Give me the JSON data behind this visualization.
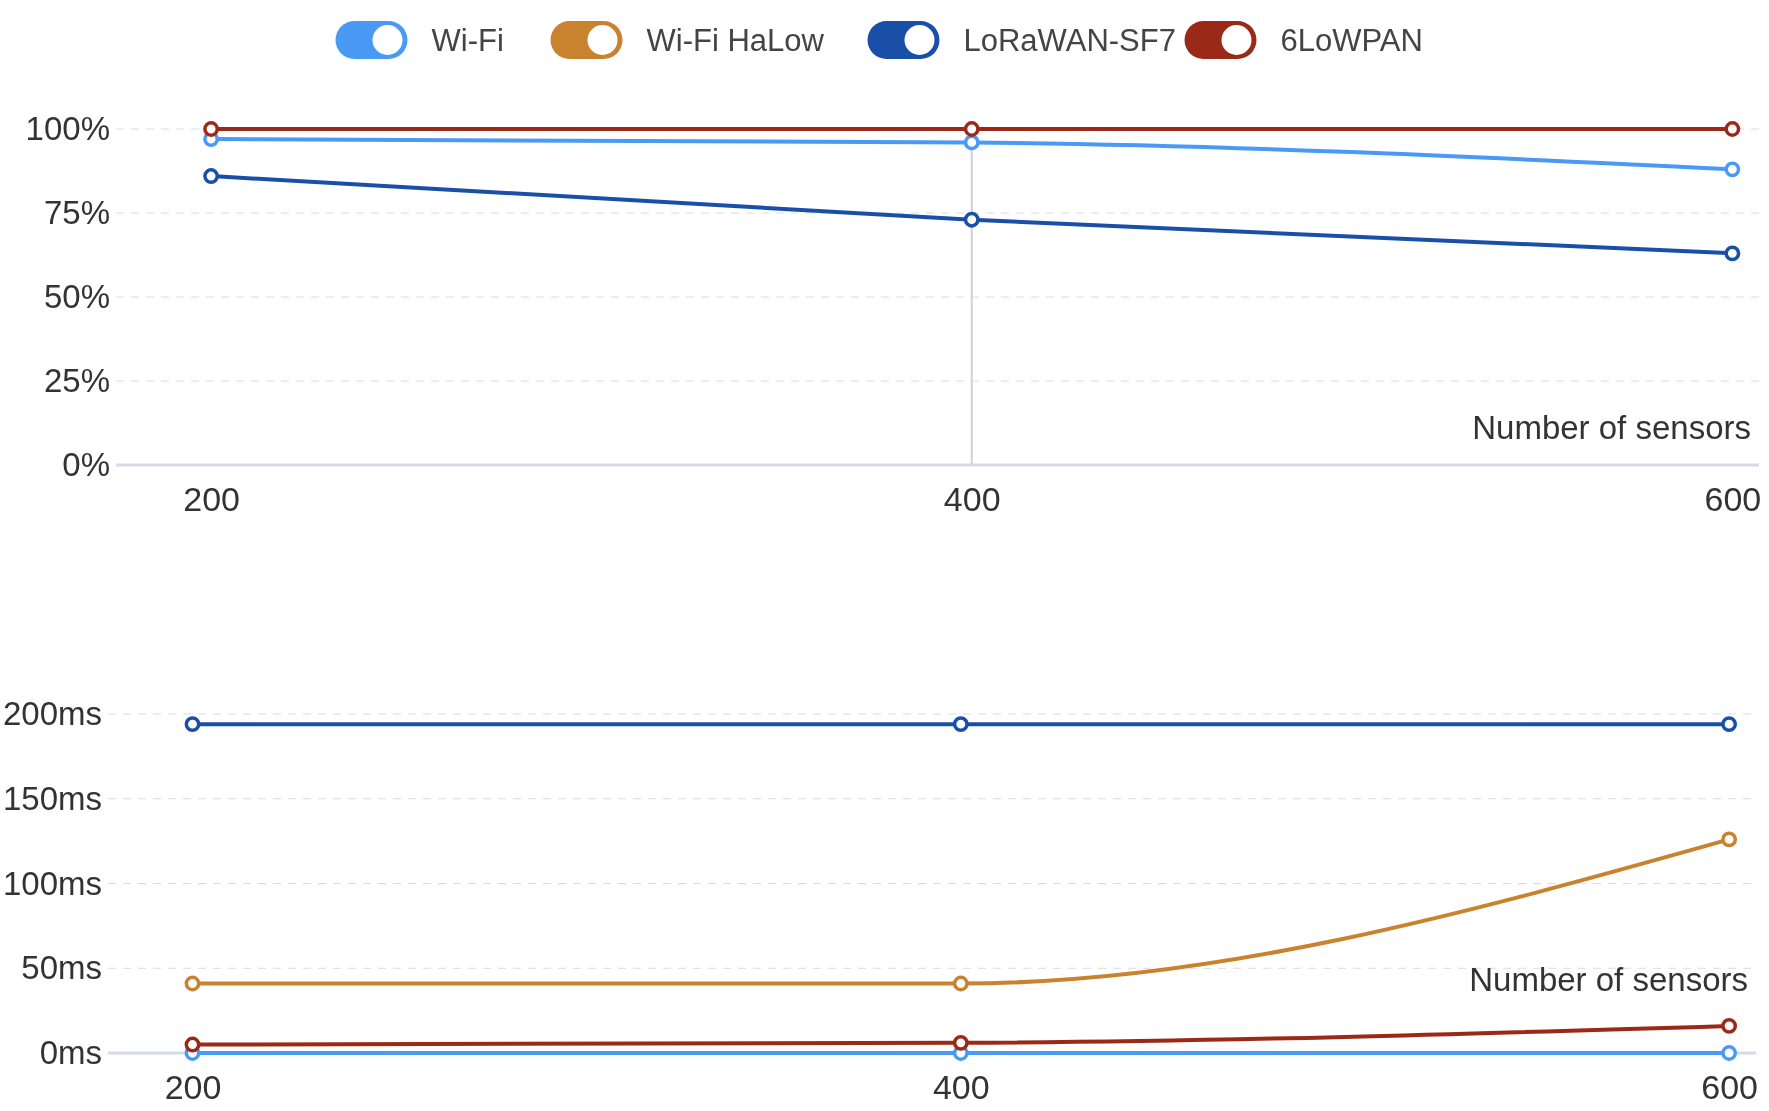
{
  "chart_data": [
    {
      "type": "line",
      "xlabel": "Number of sensors",
      "x": [
        200,
        400,
        600
      ],
      "xlim": [
        175,
        607
      ],
      "xticks": [
        200,
        400,
        600
      ],
      "ylim": [
        0,
        100
      ],
      "yticks": [
        {
          "value": 0,
          "label": "0%"
        },
        {
          "value": 25,
          "label": "25%"
        },
        {
          "value": 50,
          "label": "50%"
        },
        {
          "value": 75,
          "label": "75%"
        },
        {
          "value": 100,
          "label": "100%"
        }
      ],
      "grid": "y",
      "legend": "top",
      "marker": "circle",
      "line_style": "solid",
      "ref_lines": [
        {
          "axis": "x",
          "value": 400,
          "color": "#d0d0d0"
        }
      ],
      "series": [
        {
          "name": "Wi-Fi",
          "color": "#4a9af5",
          "values": [
            97,
            96,
            88
          ]
        },
        {
          "name": "Wi-Fi HaLow",
          "color": "#c9822e",
          "values": [
            null,
            null,
            null
          ]
        },
        {
          "name": "LoRaWAN-SF7",
          "color": "#1a4fa8",
          "values": [
            86,
            73,
            63
          ]
        },
        {
          "name": "6LoWPAN",
          "color": "#9a2a17",
          "values": [
            100,
            100,
            100
          ]
        }
      ]
    },
    {
      "type": "line",
      "xlabel": "Number of sensors",
      "x": [
        200,
        400,
        600
      ],
      "xlim": [
        178,
        607
      ],
      "xticks": [
        200,
        400,
        600
      ],
      "ylim": [
        0,
        200
      ],
      "yticks": [
        {
          "value": 0,
          "label": "0ms"
        },
        {
          "value": 50,
          "label": "50ms"
        },
        {
          "value": 100,
          "label": "100ms"
        },
        {
          "value": 150,
          "label": "150ms"
        },
        {
          "value": 200,
          "label": "200ms"
        }
      ],
      "grid": "y",
      "marker": "circle",
      "line_style": "solid",
      "series": [
        {
          "color": "#4a9af5",
          "values": [
            0,
            0,
            0
          ]
        },
        {
          "color": "#c9822e",
          "values": [
            41,
            41,
            126
          ]
        },
        {
          "color": "#1a4fa8",
          "values": [
            194,
            194,
            194
          ]
        },
        {
          "color": "#9a2a17",
          "values": [
            5,
            6,
            16
          ]
        }
      ]
    }
  ]
}
